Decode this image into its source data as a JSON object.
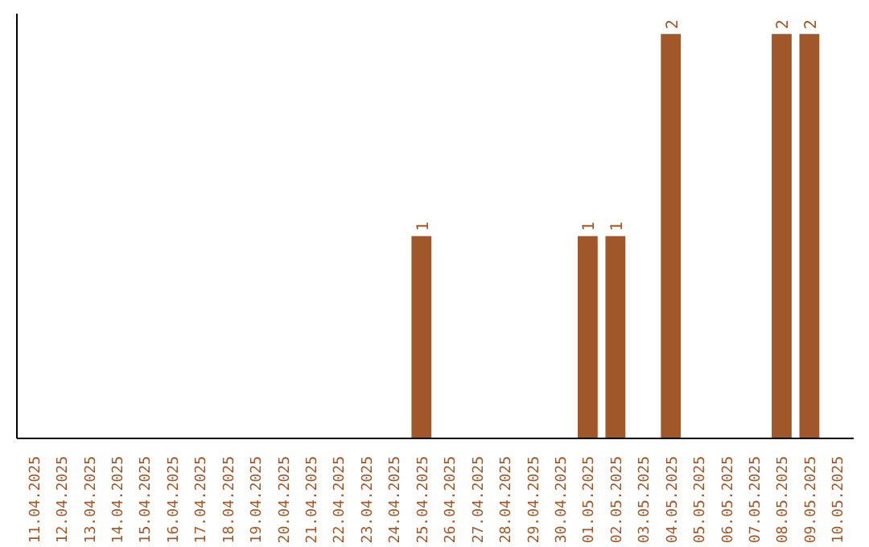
{
  "chart_data": {
    "type": "bar",
    "categories": [
      "11.04.2025",
      "12.04.2025",
      "13.04.2025",
      "14.04.2025",
      "15.04.2025",
      "16.04.2025",
      "17.04.2025",
      "18.04.2025",
      "19.04.2025",
      "20.04.2025",
      "21.04.2025",
      "22.04.2025",
      "23.04.2025",
      "24.04.2025",
      "25.04.2025",
      "26.04.2025",
      "27.04.2025",
      "28.04.2025",
      "29.04.2025",
      "30.04.2025",
      "01.05.2025",
      "02.05.2025",
      "03.05.2025",
      "04.05.2025",
      "05.05.2025",
      "06.05.2025",
      "07.05.2025",
      "08.05.2025",
      "09.05.2025",
      "10.05.2025"
    ],
    "values": [
      null,
      null,
      null,
      null,
      null,
      null,
      null,
      null,
      null,
      null,
      null,
      null,
      null,
      null,
      1,
      null,
      null,
      null,
      null,
      null,
      1,
      1,
      null,
      2,
      null,
      null,
      null,
      2,
      2,
      null
    ],
    "value_labels": [
      null,
      null,
      null,
      null,
      null,
      null,
      null,
      null,
      null,
      null,
      null,
      null,
      null,
      null,
      "1",
      null,
      null,
      null,
      null,
      null,
      "1",
      "1",
      null,
      "2",
      null,
      null,
      null,
      "2",
      "2",
      null
    ],
    "color": "#a0582b",
    "ylim": [
      0,
      2.1
    ],
    "tick_labels": "x",
    "grid": false
  }
}
